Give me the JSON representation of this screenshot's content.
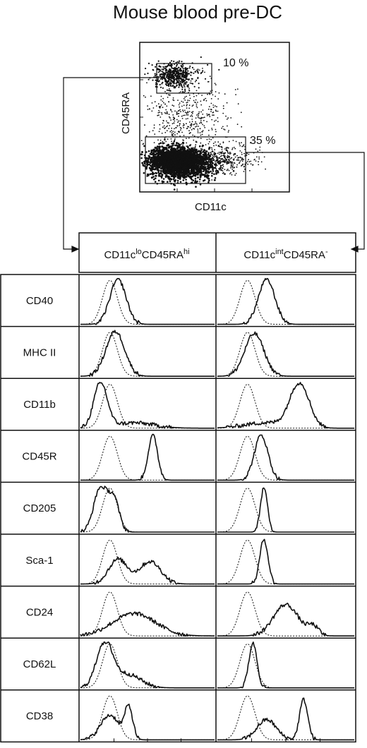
{
  "title": "Mouse blood pre-DC",
  "scatter": {
    "x_label": "CD11c",
    "y_label": "CD45RA",
    "gates": [
      {
        "name": "upper-gate",
        "percent_label": "10 %"
      },
      {
        "name": "lower-gate",
        "percent_label": "35 %"
      }
    ]
  },
  "columns": [
    {
      "head": "CD11c",
      "sup1": "lo",
      "mid": "CD45RA",
      "sup2": "hi"
    },
    {
      "head": "CD11c",
      "sup1": "int",
      "mid": "CD45RA",
      "sup2": "-"
    }
  ],
  "chart_data": {
    "type": "histogram-grid",
    "title": "Mouse blood pre-DC",
    "rows": [
      "CD40",
      "MHC II",
      "CD11b",
      "CD45R",
      "CD205",
      "Sca-1",
      "CD24",
      "CD62L",
      "CD38"
    ],
    "columns": [
      "CD11c lo CD45RA hi",
      "CD11c int CD45RA -"
    ],
    "histograms": [
      [
        {
          "peaks": [
            [
              0.28,
              0.06,
              1.0
            ]
          ]
        },
        {
          "peaks": [
            [
              0.36,
              0.06,
              1.0
            ]
          ]
        }
      ],
      [
        {
          "peaks": [
            [
              0.26,
              0.07,
              1.0
            ]
          ]
        },
        {
          "peaks": [
            [
              0.27,
              0.07,
              0.95
            ]
          ]
        }
      ],
      [
        {
          "peaks": [
            [
              0.15,
              0.05,
              1.0
            ],
            [
              0.4,
              0.15,
              0.12
            ]
          ]
        },
        {
          "peaks": [
            [
              0.6,
              0.07,
              1.0
            ],
            [
              0.35,
              0.15,
              0.12
            ]
          ]
        }
      ],
      [
        {
          "peaks": [
            [
              0.54,
              0.035,
              1.0
            ]
          ]
        },
        {
          "peaks": [
            [
              0.32,
              0.05,
              1.0
            ]
          ]
        }
      ],
      [
        {
          "peaks": [
            [
              0.15,
              0.05,
              1.0
            ],
            [
              0.25,
              0.04,
              0.7
            ]
          ]
        },
        {
          "peaks": [
            [
              0.34,
              0.025,
              1.0
            ]
          ]
        }
      ],
      [
        {
          "peaks": [
            [
              0.28,
              0.07,
              0.55
            ],
            [
              0.52,
              0.08,
              0.5
            ]
          ]
        },
        {
          "peaks": [
            [
              0.34,
              0.03,
              1.0
            ]
          ]
        }
      ],
      [
        {
          "peaks": [
            [
              0.4,
              0.16,
              0.5
            ]
          ]
        },
        {
          "peaks": [
            [
              0.5,
              0.09,
              0.7
            ],
            [
              0.7,
              0.04,
              0.2
            ]
          ]
        }
      ],
      [
        {
          "peaks": [
            [
              0.18,
              0.06,
              1.0
            ],
            [
              0.35,
              0.1,
              0.3
            ]
          ]
        },
        {
          "peaks": [
            [
              0.26,
              0.03,
              1.0
            ]
          ]
        }
      ],
      [
        {
          "peaks": [
            [
              0.22,
              0.07,
              0.55
            ],
            [
              0.36,
              0.03,
              0.7
            ]
          ]
        },
        {
          "peaks": [
            [
              0.36,
              0.07,
              0.45
            ],
            [
              0.63,
              0.03,
              0.9
            ]
          ]
        }
      ]
    ],
    "isotype": [
      [
        0.22,
        0.055
      ],
      [
        0.22,
        0.055
      ],
      [
        0.22,
        0.055
      ],
      [
        0.22,
        0.055
      ],
      [
        0.22,
        0.055
      ],
      [
        0.22,
        0.055
      ],
      [
        0.22,
        0.055
      ],
      [
        0.22,
        0.055
      ],
      [
        0.22,
        0.055
      ]
    ]
  }
}
